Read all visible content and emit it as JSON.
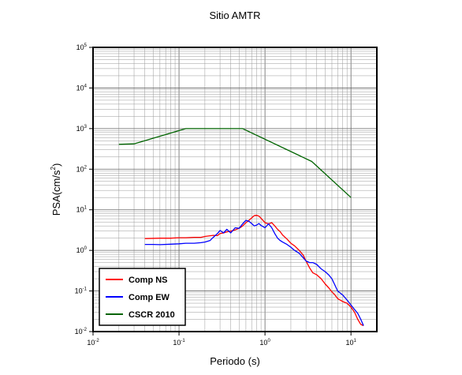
{
  "chart_data": {
    "type": "line",
    "title": "Sitio AMTR",
    "xlabel": "Periodo (s)",
    "ylabel": "PSA(cm/s",
    "ylabel_exp": "2",
    "ylabel_close": ")",
    "xscale": "log",
    "yscale": "log",
    "xlim": [
      0.01,
      20
    ],
    "ylim": [
      0.01,
      100000
    ],
    "grid": true,
    "legend_position": "bottom-left",
    "x_ticks": [
      {
        "base": "10",
        "exp": "-2",
        "value": 0.01
      },
      {
        "base": "10",
        "exp": "-1",
        "value": 0.1
      },
      {
        "base": "10",
        "exp": "0",
        "value": 1
      },
      {
        "base": "10",
        "exp": "1",
        "value": 10
      }
    ],
    "y_ticks": [
      {
        "base": "10",
        "exp": "-2",
        "value": 0.01
      },
      {
        "base": "10",
        "exp": "-1",
        "value": 0.1
      },
      {
        "base": "10",
        "exp": "0",
        "value": 1
      },
      {
        "base": "10",
        "exp": "1",
        "value": 10
      },
      {
        "base": "10",
        "exp": "2",
        "value": 100
      },
      {
        "base": "10",
        "exp": "3",
        "value": 1000
      },
      {
        "base": "10",
        "exp": "4",
        "value": 10000
      },
      {
        "base": "10",
        "exp": "5",
        "value": 100000
      }
    ],
    "series": [
      {
        "name": "Comp NS",
        "color": "#ff0000",
        "x": [
          0.04,
          0.06,
          0.08,
          0.1,
          0.12,
          0.15,
          0.18,
          0.2,
          0.25,
          0.28,
          0.3,
          0.33,
          0.36,
          0.4,
          0.45,
          0.5,
          0.55,
          0.6,
          0.65,
          0.7,
          0.75,
          0.8,
          0.85,
          0.9,
          1.0,
          1.1,
          1.2,
          1.3,
          1.4,
          1.5,
          1.6,
          1.8,
          2.0,
          2.2,
          2.5,
          2.8,
          3.0,
          3.3,
          3.6,
          4.0,
          4.5,
          5.0,
          5.5,
          6.0,
          6.5,
          7.0,
          8.0,
          9.0,
          10.0,
          11.0,
          12.0,
          13.0,
          14.0
        ],
        "y": [
          1.95,
          2.0,
          2.0,
          2.05,
          2.05,
          2.1,
          2.1,
          2.2,
          2.35,
          2.3,
          2.6,
          2.7,
          2.85,
          3.0,
          3.2,
          3.5,
          4.0,
          4.8,
          5.5,
          6.3,
          7.2,
          7.3,
          7.0,
          6.2,
          4.8,
          4.5,
          4.8,
          4.0,
          3.3,
          2.9,
          2.4,
          1.9,
          1.5,
          1.3,
          1.0,
          0.75,
          0.55,
          0.37,
          0.28,
          0.25,
          0.2,
          0.15,
          0.12,
          0.095,
          0.08,
          0.065,
          0.055,
          0.05,
          0.04,
          0.03,
          0.02,
          0.015,
          0.014
        ]
      },
      {
        "name": "Comp EW",
        "color": "#0000ff",
        "x": [
          0.04,
          0.05,
          0.06,
          0.08,
          0.1,
          0.12,
          0.15,
          0.18,
          0.2,
          0.23,
          0.25,
          0.28,
          0.3,
          0.33,
          0.36,
          0.4,
          0.45,
          0.5,
          0.55,
          0.6,
          0.65,
          0.7,
          0.75,
          0.8,
          0.85,
          0.9,
          1.0,
          1.1,
          1.2,
          1.3,
          1.4,
          1.5,
          1.6,
          1.8,
          2.0,
          2.2,
          2.5,
          2.8,
          3.0,
          3.3,
          3.6,
          4.0,
          4.5,
          5.0,
          5.5,
          6.0,
          6.5,
          7.0,
          8.0,
          9.0,
          10.0,
          11.0,
          12.0,
          13.0,
          14.0
        ],
        "y": [
          1.4,
          1.4,
          1.38,
          1.42,
          1.45,
          1.5,
          1.5,
          1.55,
          1.6,
          1.75,
          2.1,
          2.6,
          3.1,
          2.7,
          3.3,
          2.7,
          3.6,
          3.5,
          4.5,
          5.5,
          5.2,
          4.6,
          4.0,
          4.2,
          4.6,
          4.1,
          3.6,
          4.5,
          3.6,
          2.6,
          2.0,
          1.75,
          1.6,
          1.4,
          1.2,
          1.0,
          0.85,
          0.65,
          0.55,
          0.5,
          0.5,
          0.45,
          0.35,
          0.3,
          0.25,
          0.2,
          0.14,
          0.1,
          0.08,
          0.06,
          0.045,
          0.035,
          0.028,
          0.02,
          0.014
        ]
      },
      {
        "name": "CSCR 2010",
        "color": "#006400",
        "x": [
          0.02,
          0.03,
          0.12,
          0.55,
          3.5,
          10
        ],
        "y": [
          410,
          420,
          1000,
          1000,
          155,
          20
        ]
      }
    ]
  }
}
